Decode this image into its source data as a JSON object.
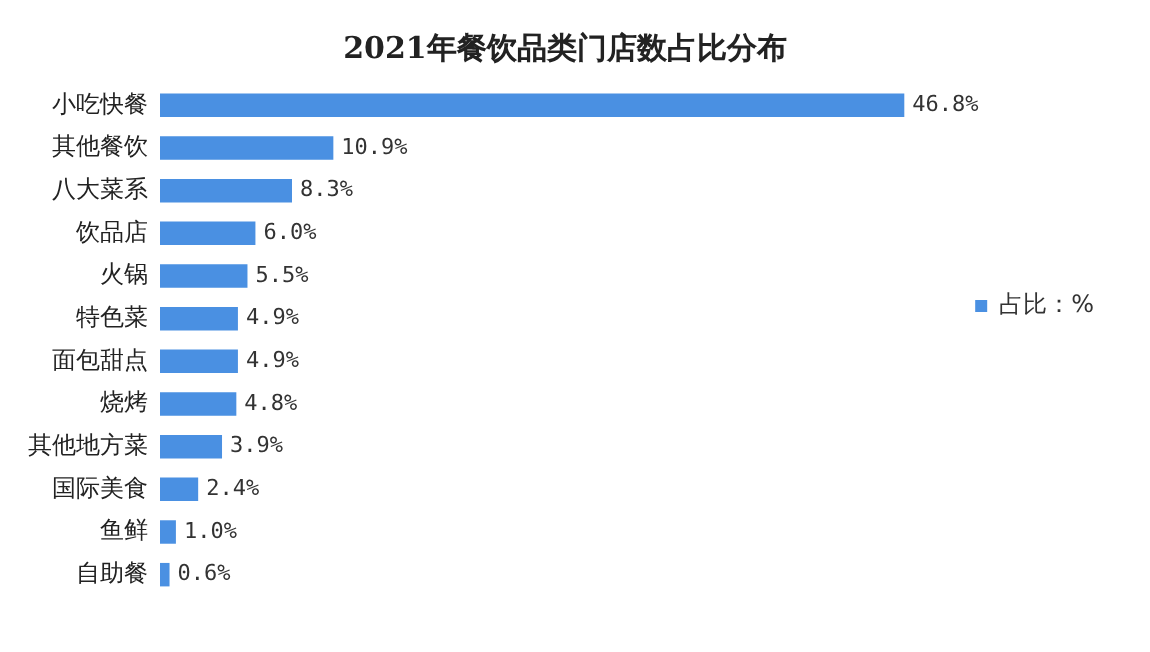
{
  "chart_data": {
    "type": "bar",
    "orientation": "horizontal",
    "title": "2021年餐饮品类门店数占比分布",
    "categories": [
      "小吃快餐",
      "其他餐饮",
      "八大菜系",
      "饮品店",
      "火锅",
      "特色菜",
      "面包甜点",
      "烧烤",
      "其他地方菜",
      "国际美食",
      "鱼鲜",
      "自助餐"
    ],
    "series": [
      {
        "name": "占比：%",
        "color": "#4a90e2",
        "values": [
          46.8,
          10.9,
          8.3,
          6.0,
          5.5,
          4.9,
          4.9,
          4.8,
          3.9,
          2.4,
          1.0,
          0.6
        ],
        "value_labels": [
          "46.8%",
          "10.9%",
          "8.3%",
          "6.0%",
          "5.5%",
          "4.9%",
          "4.9%",
          "4.8%",
          "3.9%",
          "2.4%",
          "1.0%",
          "0.6%"
        ]
      }
    ],
    "legend": "right",
    "grid": false
  }
}
